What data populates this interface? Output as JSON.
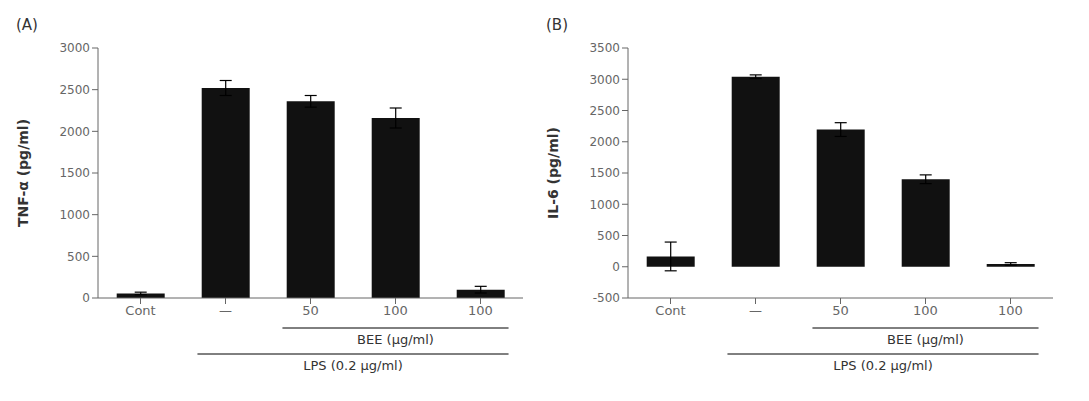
{
  "chart_data": [
    {
      "type": "bar",
      "title": "(A)",
      "y_label": "TNF-α (pg/ml)",
      "categories": [
        "Cont",
        "—",
        "50",
        "100",
        "100"
      ],
      "values": [
        55,
        2520,
        2360,
        2160,
        100
      ],
      "errors": [
        15,
        90,
        70,
        120,
        40
      ],
      "color": "#111111",
      "ylim": [
        0,
        3000
      ],
      "yticks": [
        0,
        500,
        1000,
        1500,
        2000,
        2500,
        3000
      ],
      "grid": false,
      "annotations": [
        "BEE (μg/ml)",
        "LPS (0.2 μg/ml)"
      ]
    },
    {
      "type": "bar",
      "title": "(B)",
      "y_label": "IL-6 (pg/ml)",
      "categories": [
        "Cont",
        "—",
        "50",
        "100",
        "100"
      ],
      "values": [
        165,
        3040,
        2195,
        1400,
        45
      ],
      "errors": [
        230,
        30,
        110,
        70,
        20
      ],
      "color": "#111111",
      "ylim": [
        -500,
        3500
      ],
      "yticks": [
        -500,
        0,
        500,
        1000,
        1500,
        2000,
        2500,
        3000,
        3500
      ],
      "grid": false,
      "annotations": [
        "BEE (μg/ml)",
        "LPS (0.2 μg/ml)"
      ]
    }
  ]
}
